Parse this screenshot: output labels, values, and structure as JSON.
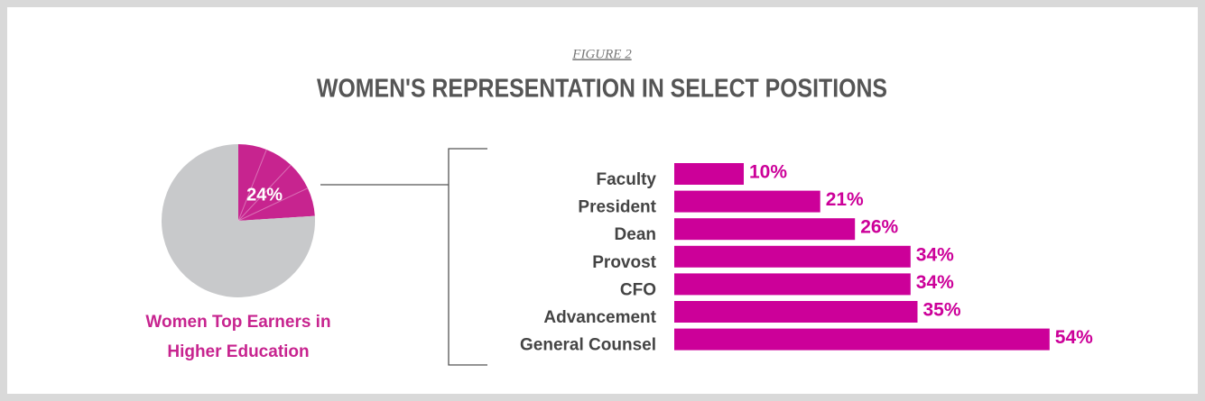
{
  "header": {
    "figure": "FIGURE 2",
    "title": "WOMEN'S REPRESENTATION IN SELECT POSITIONS"
  },
  "chart_data": [
    {
      "type": "pie",
      "caption": "Women Top Earners in Higher Education",
      "values": [
        24,
        76
      ],
      "value_labels": [
        "24%",
        null
      ],
      "colors": [
        "#c7248f",
        "#c8c9cb"
      ]
    },
    {
      "type": "bar",
      "orientation": "horizontal",
      "categories": [
        "Faculty",
        "President",
        "Dean",
        "Provost",
        "CFO",
        "Advancement",
        "General Counsel"
      ],
      "values": [
        10,
        21,
        26,
        34,
        34,
        35,
        54
      ],
      "value_labels": [
        "10%",
        "21%",
        "26%",
        "34%",
        "34%",
        "35%",
        "54%"
      ],
      "color": "#cc0099"
    }
  ]
}
